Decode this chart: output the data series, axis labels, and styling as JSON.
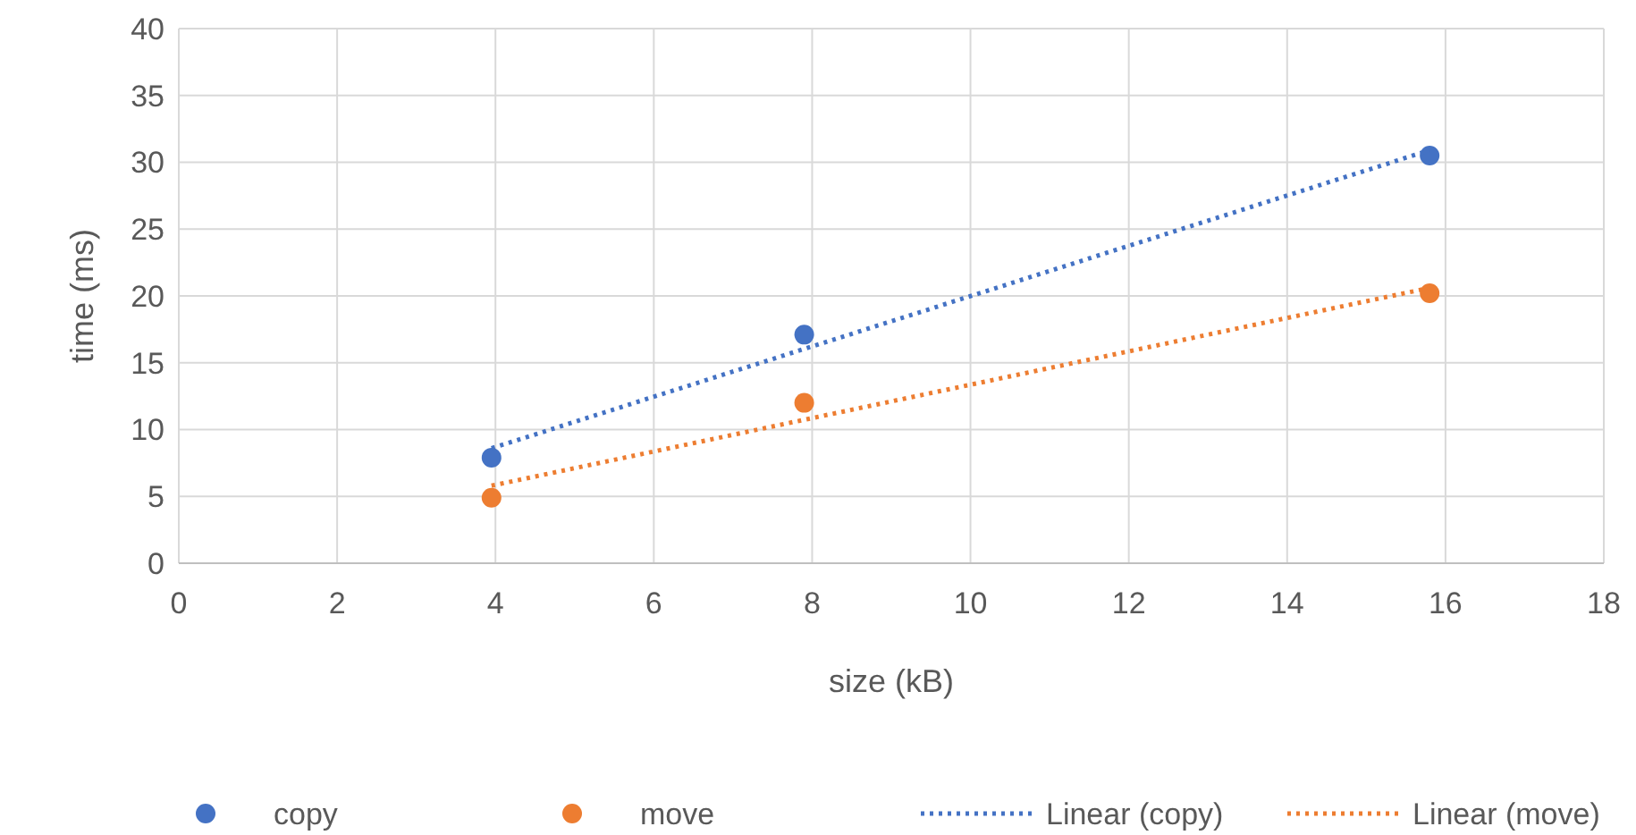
{
  "chart_data": {
    "type": "scatter",
    "xlabel": "size (kB)",
    "ylabel": "time (ms)",
    "xlim": [
      0,
      18
    ],
    "xticks": [
      0,
      2,
      4,
      6,
      8,
      10,
      12,
      14,
      16,
      18
    ],
    "ylim": [
      0,
      40
    ],
    "yticks": [
      0,
      5,
      10,
      15,
      20,
      25,
      30,
      35,
      40
    ],
    "grid": true,
    "legend": "bottom",
    "series": [
      {
        "name": "copy",
        "color": "#4472c4",
        "marker": "circle",
        "x": [
          3.95,
          7.9,
          15.8
        ],
        "values": [
          7.9,
          17.1,
          30.5
        ]
      },
      {
        "name": "move",
        "color": "#ed7d31",
        "marker": "circle",
        "x": [
          3.95,
          7.9,
          15.8
        ],
        "values": [
          4.9,
          12,
          20.2
        ]
      },
      {
        "name": "Linear (copy)",
        "type": "line",
        "color": "#4472c4",
        "marker": "none",
        "line_style": "dotted",
        "x": [
          3.95,
          15.8
        ],
        "values": [
          8.6,
          30.9
        ]
      },
      {
        "name": "Linear (move)",
        "type": "line",
        "color": "#ed7d31",
        "marker": "none",
        "line_style": "dotted",
        "x": [
          3.95,
          15.8
        ],
        "values": [
          5.8,
          20.6
        ]
      }
    ]
  }
}
